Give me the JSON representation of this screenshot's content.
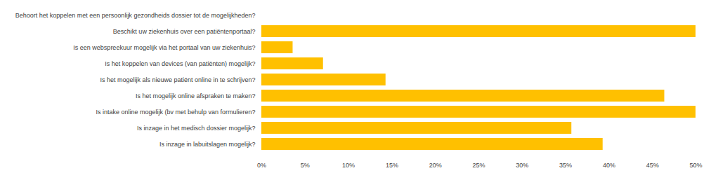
{
  "chart_data": {
    "type": "bar",
    "orientation": "horizontal",
    "categories": [
      "Behoort het koppelen met een persoonlijk gezondheids dossier tot de mogelijkheden?",
      "Beschikt uw ziekenhuis over een patiëntenportaal?",
      "Is een webspreekuur mogelijk via het portaal van uw ziekenhuis?",
      "Is het koppelen van devices (van patiënten) mogelijk?",
      "Is het mogelijk als nieuwe patiënt online in te schrijven?",
      "Is het mogelijk online afspraken te maken?",
      "Is intake online mogelijk (bv met behulp van formulieren?",
      "Is inzage in het medisch dossier mogelijk?",
      "Is inzage in labuitslagen mogelijk?"
    ],
    "values": [
      0,
      50,
      3.6,
      7.1,
      14.3,
      46.4,
      50,
      35.7,
      39.3
    ],
    "color": "#FFC000",
    "xlim": [
      0,
      50
    ],
    "xticks": [
      {
        "value": 0,
        "label": "0%"
      },
      {
        "value": 5,
        "label": "5%"
      },
      {
        "value": 10,
        "label": "10%"
      },
      {
        "value": 15,
        "label": "15%"
      },
      {
        "value": 20,
        "label": "20%"
      },
      {
        "value": 25,
        "label": "25%"
      },
      {
        "value": 30,
        "label": "30%"
      },
      {
        "value": 35,
        "label": "35%"
      },
      {
        "value": 40,
        "label": "40%"
      },
      {
        "value": 45,
        "label": "45%"
      },
      {
        "value": 50,
        "label": "50%"
      }
    ],
    "grid": false
  }
}
